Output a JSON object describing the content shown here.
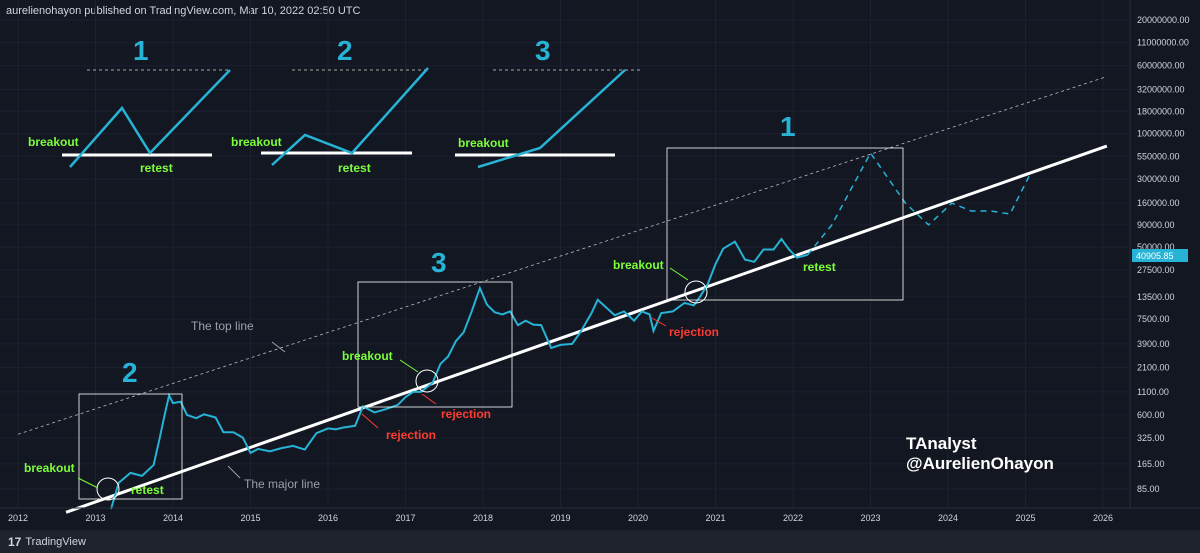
{
  "header": {
    "text": "aurelienohayon published on TradingView.com, Mar 10, 2022 02:50 UTC"
  },
  "footer": {
    "logo": "17",
    "label": "TradingView"
  },
  "price_label": "40905.85",
  "colors": {
    "background": "#131722",
    "price_line": "#26b3d6",
    "major_line": "#ffffff",
    "green": "#7cff3a",
    "red": "#ff3b30",
    "axis_text": "#d1d4dc"
  },
  "branding": {
    "line1": "TAnalyst",
    "line2": "@AurelienOhayon"
  },
  "labels": {
    "top_line": "The top line",
    "major_line": "The major line",
    "breakout": "breakout",
    "retest": "retest",
    "rejection": "rejection",
    "n1": "1",
    "n2": "2",
    "n3": "3"
  },
  "chart_data": {
    "type": "line",
    "y_scale": "log",
    "y_ticks": [
      "20000000.00",
      "11000000.00",
      "6000000.00",
      "3200000.00",
      "1800000.00",
      "1000000.00",
      "550000.00",
      "300000.00",
      "160000.00",
      "90000.00",
      "50000.00",
      "27500.00",
      "13500.00",
      "7500.00",
      "3900.00",
      "2100.00",
      "1100.00",
      "600.00",
      "325.00",
      "165.00",
      "85.00"
    ],
    "x_ticks": [
      "2012",
      "2013",
      "2014",
      "2015",
      "2016",
      "2017",
      "2018",
      "2019",
      "2020",
      "2021",
      "2022",
      "2023",
      "2024",
      "2025",
      "2026"
    ],
    "series": [
      {
        "values": [
          [
            2013.2,
            50
          ],
          [
            2013.3,
            100
          ],
          [
            2013.45,
            130
          ],
          [
            2013.6,
            120
          ],
          [
            2013.75,
            160
          ],
          [
            2013.82,
            300
          ],
          [
            2013.9,
            650
          ],
          [
            2013.95,
            1000
          ],
          [
            2014.0,
            820
          ],
          [
            2014.1,
            850
          ],
          [
            2014.18,
            600
          ],
          [
            2014.3,
            550
          ],
          [
            2014.4,
            610
          ],
          [
            2014.55,
            560
          ],
          [
            2014.65,
            380
          ],
          [
            2014.78,
            380
          ],
          [
            2014.9,
            330
          ],
          [
            2015.0,
            220
          ],
          [
            2015.1,
            245
          ],
          [
            2015.25,
            230
          ],
          [
            2015.4,
            250
          ],
          [
            2015.55,
            265
          ],
          [
            2015.7,
            240
          ],
          [
            2015.85,
            370
          ],
          [
            2016.0,
            420
          ],
          [
            2016.1,
            410
          ],
          [
            2016.2,
            430
          ],
          [
            2016.35,
            450
          ],
          [
            2016.45,
            750
          ],
          [
            2016.6,
            640
          ],
          [
            2016.75,
            700
          ],
          [
            2016.9,
            780
          ],
          [
            2017.0,
            960
          ],
          [
            2017.1,
            1100
          ],
          [
            2017.2,
            1100
          ],
          [
            2017.35,
            1400
          ],
          [
            2017.45,
            2300
          ],
          [
            2017.55,
            2800
          ],
          [
            2017.65,
            4200
          ],
          [
            2017.75,
            5300
          ],
          [
            2017.85,
            9000
          ],
          [
            2017.96,
            17000
          ],
          [
            2018.05,
            11000
          ],
          [
            2018.15,
            9000
          ],
          [
            2018.25,
            8500
          ],
          [
            2018.35,
            9200
          ],
          [
            2018.45,
            6400
          ],
          [
            2018.55,
            7200
          ],
          [
            2018.65,
            6500
          ],
          [
            2018.75,
            6400
          ],
          [
            2018.88,
            3500
          ],
          [
            2019.0,
            3800
          ],
          [
            2019.15,
            3900
          ],
          [
            2019.25,
            5200
          ],
          [
            2019.4,
            8800
          ],
          [
            2019.48,
            12500
          ],
          [
            2019.6,
            10000
          ],
          [
            2019.7,
            8300
          ],
          [
            2019.82,
            9200
          ],
          [
            2019.95,
            7200
          ],
          [
            2020.05,
            9200
          ],
          [
            2020.15,
            8500
          ],
          [
            2020.2,
            5500
          ],
          [
            2020.3,
            8800
          ],
          [
            2020.45,
            9200
          ],
          [
            2020.6,
            11500
          ],
          [
            2020.72,
            10800
          ],
          [
            2020.8,
            13500
          ],
          [
            2020.9,
            19000
          ],
          [
            2021.0,
            32000
          ],
          [
            2021.1,
            48000
          ],
          [
            2021.25,
            58000
          ],
          [
            2021.38,
            36000
          ],
          [
            2021.5,
            34000
          ],
          [
            2021.62,
            47000
          ],
          [
            2021.75,
            47000
          ],
          [
            2021.85,
            62000
          ],
          [
            2021.95,
            47000
          ],
          [
            2022.05,
            38000
          ],
          [
            2022.19,
            40906
          ]
        ]
      }
    ],
    "projection": [
      [
        2022.19,
        40906
      ],
      [
        2022.5,
        90000
      ],
      [
        2023.0,
        600000
      ],
      [
        2023.45,
        160000
      ],
      [
        2023.75,
        90000
      ],
      [
        2024.05,
        160000
      ],
      [
        2024.3,
        130000
      ],
      [
        2024.55,
        130000
      ],
      [
        2024.8,
        120000
      ],
      [
        2025.05,
        330000
      ]
    ],
    "major_line": [
      [
        2012.62,
        46
      ],
      [
        2026.05,
        720000
      ]
    ],
    "top_line": [
      [
        2012.0,
        360
      ],
      [
        2026.05,
        4500000
      ]
    ]
  }
}
